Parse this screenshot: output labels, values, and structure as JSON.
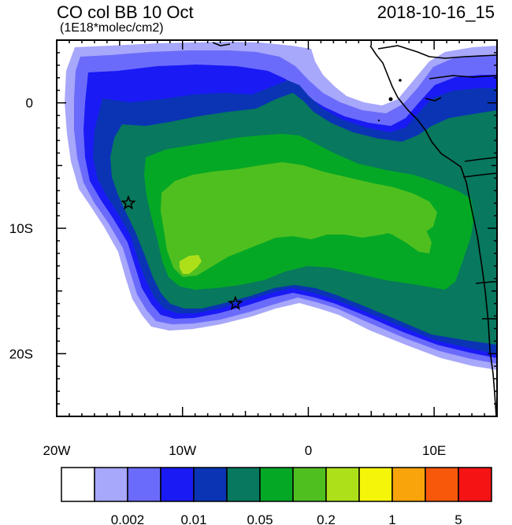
{
  "header": {
    "title": "CO col BB 10 Oct",
    "units": "(1E18*molec/cm2)",
    "timestamp": "2018-10-16_15"
  },
  "axes": {
    "lat_labels": [
      {
        "lat": 0,
        "label": "0"
      },
      {
        "lat": -10,
        "label": "10S"
      },
      {
        "lat": -20,
        "label": "20S"
      }
    ],
    "lon_labels": [
      {
        "lon": -20,
        "label": "20W"
      },
      {
        "lon": -10,
        "label": "10W"
      },
      {
        "lon": 0,
        "label": "0"
      },
      {
        "lon": 10,
        "label": "10E"
      }
    ],
    "lon_range": [
      -20,
      15
    ],
    "lat_range": [
      -25,
      5
    ]
  },
  "markers": [
    {
      "name": "star",
      "lon": -14.3,
      "lat": -8.0
    },
    {
      "name": "star",
      "lon": -5.8,
      "lat": -16.0
    }
  ],
  "colorbar": {
    "colors": [
      "#ffffff",
      "#a7a7fb",
      "#6b6bfb",
      "#1a1af5",
      "#0a34b4",
      "#08785e",
      "#05a825",
      "#4fbf20",
      "#aee01a",
      "#f5f50a",
      "#f8a40a",
      "#f8580a",
      "#f41414"
    ],
    "labels": [
      {
        "after_box": 2,
        "text": "0.002"
      },
      {
        "after_box": 4,
        "text": "0.01"
      },
      {
        "after_box": 6,
        "text": "0.05"
      },
      {
        "after_box": 8,
        "text": "0.2"
      },
      {
        "after_box": 10,
        "text": "1"
      },
      {
        "after_box": 12,
        "text": "5"
      }
    ]
  }
}
